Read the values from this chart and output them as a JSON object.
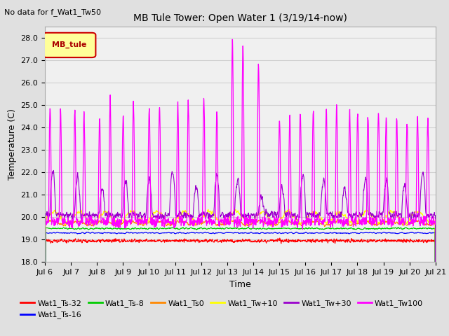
{
  "title": "MB Tule Tower: Open Water 1 (3/19/14-now)",
  "subtitle": "No data for f_Wat1_Tw50",
  "xlabel": "Time",
  "ylabel": "Temperature (C)",
  "ylim": [
    18.0,
    28.5
  ],
  "yticks": [
    18.0,
    19.0,
    20.0,
    21.0,
    22.0,
    23.0,
    24.0,
    25.0,
    26.0,
    27.0,
    28.0
  ],
  "xtick_labels": [
    "Jul 6",
    "Jul 7",
    "Jul 8",
    "Jul 9",
    "Jul 10",
    "Jul 11",
    "Jul 12",
    "Jul 13",
    "Jul 14",
    "Jul 15",
    "Jul 16",
    "Jul 17",
    "Jul 18",
    "Jul 19",
    "Jul 20",
    "Jul 21"
  ],
  "legend_box_label": "MB_tule",
  "legend_box_color": "#ffff99",
  "legend_box_border": "#cc0000",
  "series": [
    {
      "label": "Wat1_Ts-32",
      "color": "#ff0000",
      "lw": 0.8
    },
    {
      "label": "Wat1_Ts-16",
      "color": "#0000ff",
      "lw": 0.8
    },
    {
      "label": "Wat1_Ts-8",
      "color": "#00cc00",
      "lw": 0.8
    },
    {
      "label": "Wat1_Ts0",
      "color": "#ff8800",
      "lw": 0.8
    },
    {
      "label": "Wat1_Tw+10",
      "color": "#ffff00",
      "lw": 0.8
    },
    {
      "label": "Wat1_Tw+30",
      "color": "#9900cc",
      "lw": 0.8
    },
    {
      "label": "Wat1_Tw100",
      "color": "#ff00ff",
      "lw": 0.9
    }
  ],
  "background_color": "#e0e0e0",
  "plot_bg_color": "#f0f0f0",
  "grid_color": "#d0d0d0"
}
